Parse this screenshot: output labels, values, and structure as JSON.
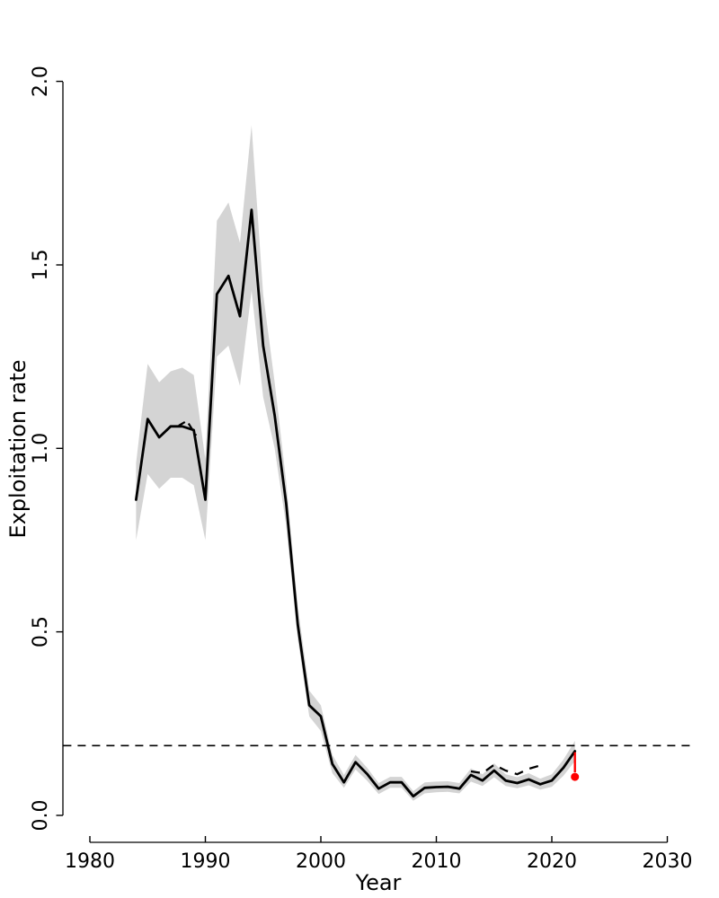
{
  "chart_data": {
    "type": "line",
    "title": "",
    "xlabel": "Year",
    "ylabel": "Exploitation rate",
    "x_ticks": [
      1980,
      1990,
      2000,
      2010,
      2020,
      2030
    ],
    "y_ticks": [
      "0.0",
      "0.5",
      "1.0",
      "1.5",
      "2.0"
    ],
    "xlim": [
      1977.7,
      2032.3
    ],
    "ylim": [
      0.0,
      2.05
    ],
    "grid": false,
    "legend": "none",
    "background_color": "#ffffff",
    "line_color": "#000000",
    "band_color": "#d4d4d4",
    "accent_color": "#ff0000",
    "reference_line": {
      "value": 0.19,
      "style": "dashed",
      "color": "#000000"
    },
    "series": [
      {
        "name": "exploitation-rate-estimate",
        "style": "solid",
        "color": "#000000",
        "years": [
          1984,
          1985,
          1986,
          1987,
          1988,
          1989,
          1990,
          1991,
          1992,
          1993,
          1994,
          1995,
          1996,
          1997,
          1998,
          1999,
          2000,
          2001,
          2002,
          2003,
          2004,
          2005,
          2006,
          2007,
          2008,
          2009,
          2010,
          2011,
          2012,
          2013,
          2014,
          2015,
          2016,
          2017,
          2018,
          2019,
          2020,
          2021,
          2022
        ],
        "values": [
          0.86,
          1.08,
          1.03,
          1.06,
          1.06,
          1.05,
          0.86,
          1.42,
          1.47,
          1.36,
          1.65,
          1.28,
          1.09,
          0.85,
          0.52,
          0.3,
          0.27,
          0.14,
          0.09,
          0.145,
          0.113,
          0.073,
          0.09,
          0.09,
          0.052,
          0.075,
          0.077,
          0.078,
          0.073,
          0.11,
          0.095,
          0.122,
          0.095,
          0.088,
          0.098,
          0.085,
          0.095,
          0.13,
          0.175
        ],
        "ci_lower": [
          0.75,
          0.93,
          0.89,
          0.92,
          0.92,
          0.9,
          0.75,
          1.25,
          1.28,
          1.17,
          1.43,
          1.14,
          1.0,
          0.79,
          0.48,
          0.27,
          0.23,
          0.115,
          0.075,
          0.125,
          0.095,
          0.058,
          0.075,
          0.075,
          0.04,
          0.06,
          0.063,
          0.064,
          0.06,
          0.092,
          0.08,
          0.104,
          0.08,
          0.074,
          0.082,
          0.07,
          0.078,
          0.108,
          0.148
        ],
        "ci_upper": [
          0.96,
          1.23,
          1.18,
          1.21,
          1.22,
          1.2,
          0.97,
          1.62,
          1.67,
          1.56,
          1.88,
          1.42,
          1.18,
          0.91,
          0.57,
          0.34,
          0.3,
          0.165,
          0.11,
          0.165,
          0.13,
          0.088,
          0.105,
          0.105,
          0.066,
          0.09,
          0.092,
          0.093,
          0.088,
          0.128,
          0.112,
          0.142,
          0.112,
          0.104,
          0.115,
          0.1,
          0.112,
          0.152,
          0.203
        ]
      },
      {
        "name": "retrospective-dashed-recent",
        "style": "dashed",
        "color": "#000000",
        "years": [
          2013,
          2014,
          2015,
          2016,
          2017,
          2018,
          2019
        ],
        "values": [
          0.12,
          0.115,
          0.138,
          0.122,
          0.112,
          0.127,
          0.136
        ]
      },
      {
        "name": "retrospective-dashed-1988",
        "style": "dashed",
        "color": "#000000",
        "years": [
          1987.7,
          1988.4,
          1989.2
        ],
        "values": [
          1.062,
          1.075,
          1.035
        ]
      }
    ],
    "final_point": {
      "year": 2022,
      "value": 0.105,
      "drop_line_top": 0.172,
      "color": "#ff0000"
    }
  }
}
